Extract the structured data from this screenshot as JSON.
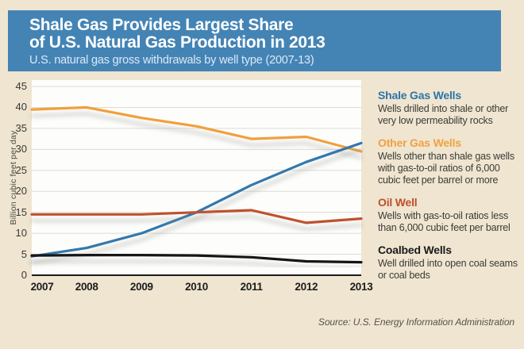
{
  "header": {
    "title_line1": "Shale Gas Provides Largest Share",
    "title_line2": "of U.S. Natural Gas Production in 2013",
    "subtitle": "U.S. natural gas gross withdrawals by well type (2007-13)"
  },
  "chart_data": {
    "type": "line",
    "x": [
      2007,
      2008,
      2009,
      2010,
      2011,
      2012,
      2013
    ],
    "series": [
      {
        "name": "Other Gas Wells",
        "color": "#f0a03c",
        "values": [
          39.5,
          40,
          37.5,
          35.5,
          32.5,
          33,
          29.5
        ]
      },
      {
        "name": "Shale Gas Wells",
        "color": "#3278ad",
        "values": [
          4.5,
          6.5,
          10,
          15,
          21.5,
          27,
          31.5
        ]
      },
      {
        "name": "Oil Well",
        "color": "#bf512e",
        "values": [
          14.5,
          14.5,
          14.5,
          15,
          15.5,
          12.5,
          13.5
        ]
      },
      {
        "name": "Coalbed Wells",
        "color": "#141414",
        "values": [
          4.7,
          4.8,
          4.8,
          4.7,
          4.3,
          3.3,
          3.1
        ]
      }
    ],
    "ylabel": "Billion cubic feet per day",
    "ylim": [
      0,
      45
    ],
    "ytick_step": 5,
    "grid": true,
    "legend_position": "right"
  },
  "legend": {
    "items": [
      {
        "label": "Shale Gas Wells",
        "color": "#2d74a8",
        "description": "Wells drilled into shale or other very low permeability rocks"
      },
      {
        "label": "Other Gas Wells",
        "color": "#f0a23c",
        "description": "Wells other than shale gas wells with gas-to-oil ratios of 6,000 cubic feet per barrel or more"
      },
      {
        "label": "Oil Well",
        "color": "#c04f2b",
        "description": "Wells with gas-to-oil ratios less than 6,000 cubic feet per barrel"
      },
      {
        "label": "Coalbed Wells",
        "color": "#1a1a1a",
        "description": "Well drilled into open coal seams or coal beds"
      }
    ]
  },
  "source": "Source: U.S. Energy Information Administration"
}
